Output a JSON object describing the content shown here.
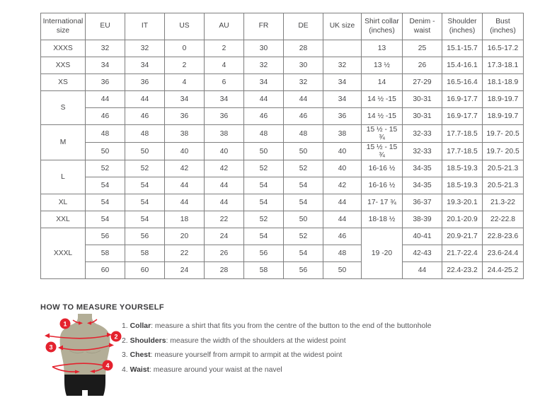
{
  "colors": {
    "accent_red": "#e4222e",
    "mannequin_body": "#b3ae97",
    "mannequin_shorts": "#1a1a1a",
    "table_border": "#7f7f7f",
    "text": "#454547"
  },
  "table": {
    "headers": [
      "International size",
      "EU",
      "IT",
      "US",
      "AU",
      "FR",
      "DE",
      "UK size",
      "Shirt collar (inches)",
      "Denim - waist",
      "Shoulder (inches)",
      "Bust (inches)"
    ],
    "rows": [
      {
        "size": "XXXS",
        "sizeSpan": 1,
        "cells": [
          "32",
          "32",
          "0",
          "2",
          "30",
          "28",
          "",
          "13",
          "25",
          "15.1-15.7",
          "16.5-17.2"
        ]
      },
      {
        "size": "XXS",
        "sizeSpan": 1,
        "cells": [
          "34",
          "34",
          "2",
          "4",
          "32",
          "30",
          "32",
          "13 ½",
          "26",
          "15.4-16.1",
          "17.3-18.1"
        ]
      },
      {
        "size": "XS",
        "sizeSpan": 1,
        "cells": [
          "36",
          "36",
          "4",
          "6",
          "34",
          "32",
          "34",
          "14",
          "27-29",
          "16.5-16.4",
          "18.1-18.9"
        ]
      },
      {
        "size": "S",
        "sizeSpan": 2,
        "cells": [
          "44",
          "44",
          "34",
          "34",
          "44",
          "44",
          "34",
          "14 ½ -15",
          "30-31",
          "16.9-17.7",
          "18.9-19.7"
        ]
      },
      {
        "cells": [
          "46",
          "46",
          "36",
          "36",
          "46",
          "46",
          "36",
          "14 ½ -15",
          "30-31",
          "16.9-17.7",
          "18.9-19.7"
        ]
      },
      {
        "size": "M",
        "sizeSpan": 2,
        "cells": [
          "48",
          "48",
          "38",
          "38",
          "48",
          "48",
          "38",
          "15 ½ - 15 ¾",
          "32-33",
          "17.7-18.5",
          "19.7- 20.5"
        ]
      },
      {
        "cells": [
          "50",
          "50",
          "40",
          "40",
          "50",
          "50",
          "40",
          "15 ½ - 15 ¾",
          "32-33",
          "17.7-18.5",
          "19.7- 20.5"
        ]
      },
      {
        "size": "L",
        "sizeSpan": 2,
        "cells": [
          "52",
          "52",
          "42",
          "42",
          "52",
          "52",
          "40",
          "16-16 ½",
          "34-35",
          "18.5-19.3",
          "20.5-21.3"
        ]
      },
      {
        "cells": [
          "54",
          "54",
          "44",
          "44",
          "54",
          "54",
          "42",
          "16-16 ½",
          "34-35",
          "18.5-19.3",
          "20.5-21.3"
        ]
      },
      {
        "size": "XL",
        "sizeSpan": 1,
        "cells": [
          "54",
          "54",
          "44",
          "44",
          "54",
          "54",
          "44",
          "17- 17 ¾",
          "36-37",
          "19.3-20.1",
          "21.3-22"
        ]
      },
      {
        "size": "XXL",
        "sizeSpan": 1,
        "cells": [
          "54",
          "54",
          "18",
          "22",
          "52",
          "50",
          "44",
          "18-18 ½",
          "38-39",
          "20.1-20.9",
          "22-22.8"
        ]
      },
      {
        "size": "XXXL",
        "sizeSpan": 3,
        "cells": [
          "56",
          "56",
          "20",
          "24",
          "54",
          "52",
          "46",
          {
            "text": "19 -20",
            "rowspan": 3
          },
          "40-41",
          "20.9-21.7",
          "22.8-23.6"
        ]
      },
      {
        "cells": [
          "58",
          "58",
          "22",
          "26",
          "56",
          "54",
          "48",
          "42-43",
          "21.7-22.4",
          "23.6-24.4"
        ]
      },
      {
        "cells": [
          "60",
          "60",
          "24",
          "28",
          "58",
          "56",
          "50",
          "44",
          "22.4-23.2",
          "24.4-25.2"
        ]
      }
    ]
  },
  "measure": {
    "title": "HOW TO MEASURE YOURSELF",
    "steps": [
      {
        "badge": "1",
        "num": "1.",
        "label": "Collar",
        "text": ": measure a shirt that fits you from the centre of the button to the end of the buttonhole"
      },
      {
        "badge": "2",
        "num": "2.",
        "label": "Shoulders",
        "text": ": measure the width of the shoulders at the widest point"
      },
      {
        "badge": "3",
        "num": "3.",
        "label": "Chest",
        "text": ": measure yourself from armpit to armpit at the widest point"
      },
      {
        "badge": "4",
        "num": "4.",
        "label": "Waist",
        "text": ": measure around your waist at the navel"
      }
    ]
  }
}
